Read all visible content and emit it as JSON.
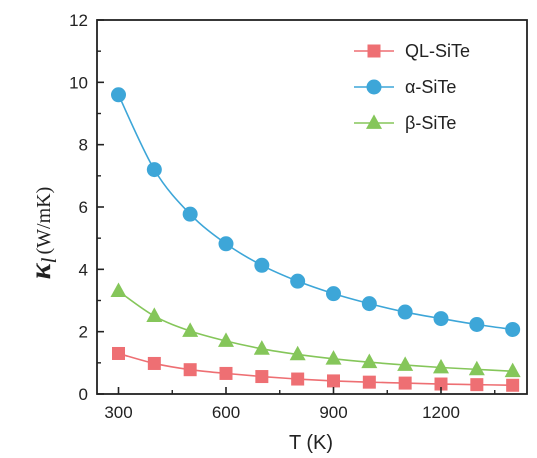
{
  "chart_data": {
    "type": "line",
    "xlabel": "T (K)",
    "ylabel": {
      "symbol": "κ",
      "subscript": "l",
      "unit": "(W/mK)"
    },
    "xlim": [
      240,
      1440
    ],
    "ylim": [
      0,
      12
    ],
    "xticks": [
      300,
      600,
      900,
      1200
    ],
    "yticks": [
      0,
      2,
      4,
      6,
      8,
      10,
      12
    ],
    "x": [
      300,
      400,
      500,
      600,
      700,
      800,
      900,
      1000,
      1100,
      1200,
      1300,
      1400
    ],
    "legend_position": "top-right",
    "series": [
      {
        "name": "QL-SiTe",
        "color": "#ee6f73",
        "marker": "square",
        "values": [
          1.3,
          0.98,
          0.78,
          0.66,
          0.56,
          0.48,
          0.42,
          0.38,
          0.35,
          0.32,
          0.3,
          0.28
        ]
      },
      {
        "name": "α-SiTe",
        "color": "#3da6d8",
        "marker": "circle",
        "values": [
          9.6,
          7.2,
          5.77,
          4.82,
          4.13,
          3.62,
          3.22,
          2.9,
          2.63,
          2.42,
          2.23,
          2.07
        ]
      },
      {
        "name": "β-SiTe",
        "color": "#85c65a",
        "marker": "triangle",
        "values": [
          3.3,
          2.5,
          2.02,
          1.7,
          1.45,
          1.27,
          1.13,
          1.02,
          0.93,
          0.85,
          0.79,
          0.73
        ]
      }
    ]
  }
}
